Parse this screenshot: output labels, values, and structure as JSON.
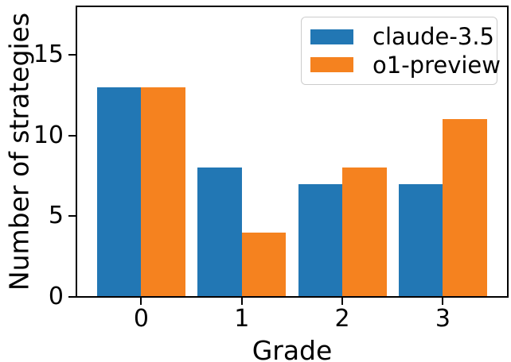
{
  "chart_data": {
    "type": "bar",
    "title": "",
    "xlabel": "Grade",
    "ylabel": "Number of strategies",
    "categories": [
      "0",
      "1",
      "2",
      "3"
    ],
    "series": [
      {
        "name": "claude-3.5",
        "color": "#2277b4",
        "values": [
          13,
          8,
          7,
          7
        ]
      },
      {
        "name": "o1-preview",
        "color": "#f5821f",
        "values": [
          13,
          4,
          8,
          11
        ]
      }
    ],
    "ylim": [
      0,
      18
    ],
    "yticks": [
      0,
      5,
      10,
      15
    ],
    "grid": false,
    "legend_position": "upper right",
    "spine_color": "#000000",
    "background_color": "#ffffff"
  }
}
